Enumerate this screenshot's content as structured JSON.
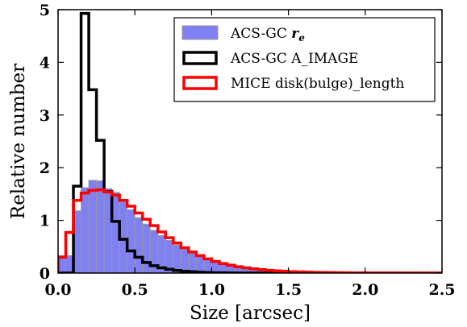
{
  "chart_data": {
    "type": "histogram",
    "xlabel": "Size [arcsec]",
    "ylabel": "Relative number",
    "xlim": [
      0.0,
      2.5
    ],
    "ylim": [
      0,
      5
    ],
    "xticks": [
      "0.0",
      "0.5",
      "1.0",
      "1.5",
      "2.0",
      "2.5"
    ],
    "yticks": [
      "0",
      "1",
      "2",
      "3",
      "4",
      "5"
    ],
    "grid": false,
    "legend_position": "top-right",
    "bin_width": 0.05,
    "bin_start": 0.0,
    "series": [
      {
        "name": "ACS-GC r_e",
        "name_main": "ACS-GC ",
        "name_math": "r",
        "name_sub": "e",
        "style": "filled",
        "color": "#8080f5",
        "edge_color": "#999999",
        "values": [
          0.33,
          0.33,
          1.18,
          1.62,
          1.76,
          1.75,
          1.6,
          1.53,
          1.35,
          1.2,
          1.05,
          0.93,
          0.81,
          0.71,
          0.62,
          0.53,
          0.45,
          0.38,
          0.32,
          0.27,
          0.23,
          0.19,
          0.16,
          0.13,
          0.11,
          0.09,
          0.08,
          0.06,
          0.05,
          0.04,
          0.035,
          0.03,
          0.025,
          0.02,
          0.016,
          0.013,
          0.01,
          0.008,
          0.006,
          0.005,
          0.004,
          0.003,
          0.0025,
          0.002,
          0.0015,
          0.001,
          0.001,
          0.0,
          0.0,
          0.0
        ]
      },
      {
        "name": "ACS-GC A_IMAGE",
        "style": "step",
        "color": "#000000",
        "values": [
          0.0,
          0.0,
          1.65,
          4.93,
          3.48,
          2.52,
          1.55,
          0.98,
          0.64,
          0.42,
          0.3,
          0.2,
          0.14,
          0.1,
          0.07,
          0.05,
          0.035,
          0.025,
          0.015,
          0.01,
          0.006,
          0.004,
          0.002,
          0.0,
          0.0,
          0.0,
          0.0,
          0.0,
          0.0,
          0.0,
          0.0,
          0.0,
          0.0,
          0.0,
          0.0,
          0.0,
          0.0,
          0.0,
          0.0,
          0.0,
          0.0,
          0.0,
          0.0,
          0.0,
          0.0,
          0.0,
          0.0,
          0.0,
          0.0,
          0.0
        ]
      },
      {
        "name": "MICE disk(bulge)_length",
        "style": "step",
        "color": "#ff0000",
        "values": [
          0.3,
          0.77,
          1.38,
          1.52,
          1.57,
          1.58,
          1.54,
          1.48,
          1.38,
          1.27,
          1.14,
          1.02,
          0.9,
          0.78,
          0.67,
          0.57,
          0.48,
          0.4,
          0.33,
          0.27,
          0.22,
          0.18,
          0.15,
          0.12,
          0.1,
          0.08,
          0.065,
          0.052,
          0.042,
          0.034,
          0.027,
          0.022,
          0.017,
          0.014,
          0.011,
          0.009,
          0.007,
          0.005,
          0.004,
          0.003,
          0.0025,
          0.002,
          0.0015,
          0.001,
          0.001,
          0.0,
          0.0,
          0.0,
          0.0,
          0.0
        ]
      }
    ]
  }
}
